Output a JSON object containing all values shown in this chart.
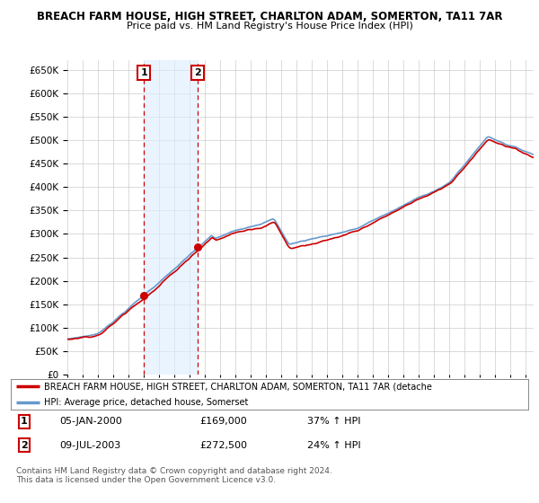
{
  "title": "BREACH FARM HOUSE, HIGH STREET, CHARLTON ADAM, SOMERTON, TA11 7AR",
  "subtitle": "Price paid vs. HM Land Registry's House Price Index (HPI)",
  "ylim": [
    0,
    670000
  ],
  "yticks": [
    0,
    50000,
    100000,
    150000,
    200000,
    250000,
    300000,
    350000,
    400000,
    450000,
    500000,
    550000,
    600000,
    650000
  ],
  "bg_color": "#ffffff",
  "grid_color": "#cccccc",
  "sale1_year": 2000.0,
  "sale1_price": 169000,
  "sale2_year": 2003.5,
  "sale2_price": 272500,
  "legend_entry1": "BREACH FARM HOUSE, HIGH STREET, CHARLTON ADAM, SOMERTON, TA11 7AR (detache",
  "legend_entry2": "HPI: Average price, detached house, Somerset",
  "table_row1": [
    "1",
    "05-JAN-2000",
    "£169,000",
    "37% ↑ HPI"
  ],
  "table_row2": [
    "2",
    "09-JUL-2003",
    "£272,500",
    "24% ↑ HPI"
  ],
  "footer1": "Contains HM Land Registry data © Crown copyright and database right 2024.",
  "footer2": "This data is licensed under the Open Government Licence v3.0.",
  "line_color_red": "#cc0000",
  "line_color_blue": "#6699cc",
  "vline_color": "#cc0000",
  "shade_color": "#ddeeff",
  "x_start_year": 1995,
  "x_end_year": 2025
}
